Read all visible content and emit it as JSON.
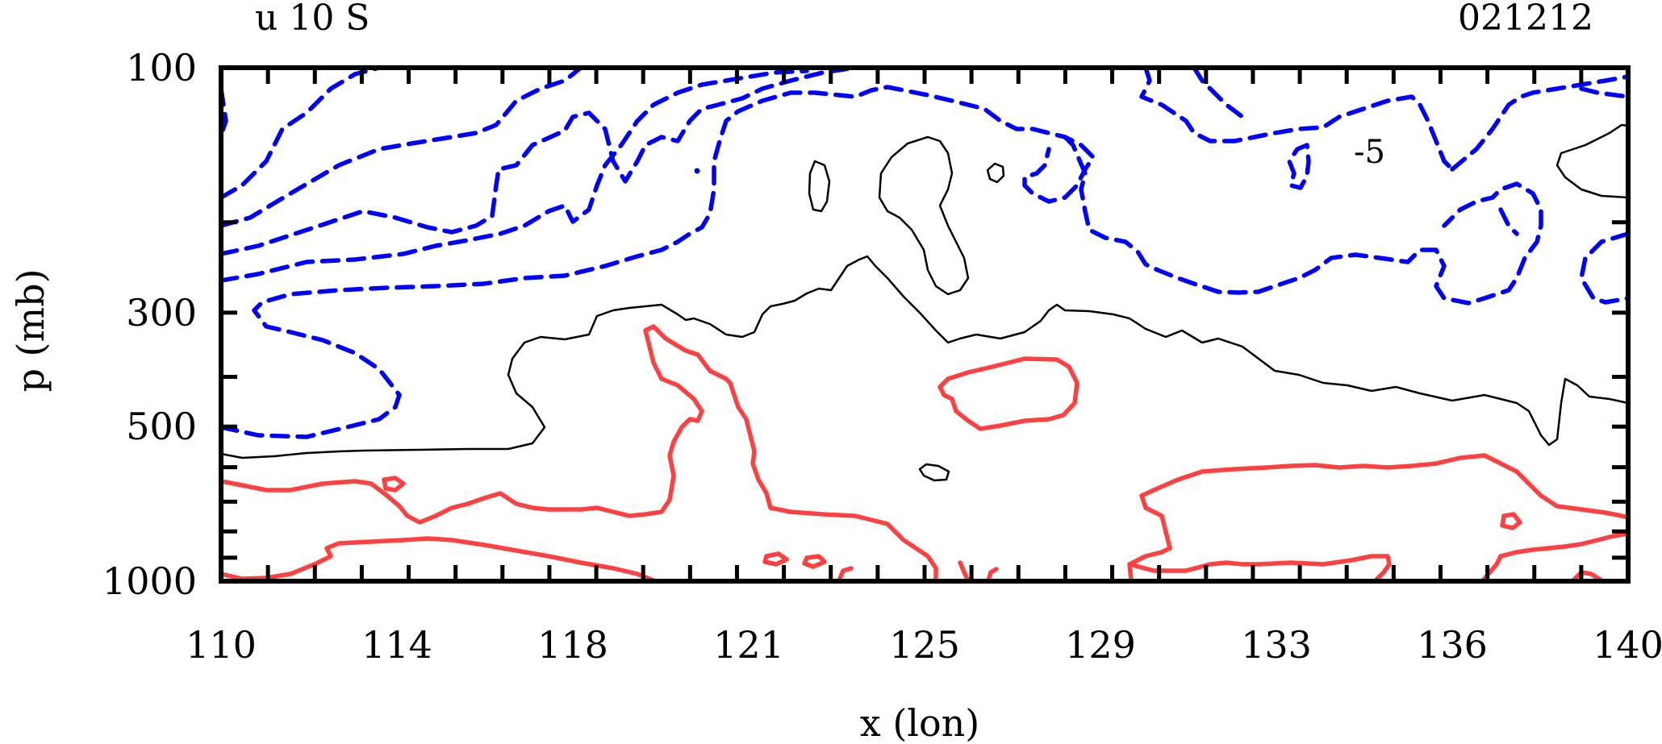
{
  "chart_data": {
    "type": "contour",
    "title_left": "u  10  S",
    "title_right": "021212",
    "xlabel": "x (lon)",
    "ylabel": "p (mb)",
    "x_range": [
      110,
      140
    ],
    "y_range": [
      100,
      1000
    ],
    "y_scale": "log",
    "x_tick_labels": [
      "110",
      "114",
      "118",
      "121",
      "125",
      "129",
      "133",
      "136",
      "140"
    ],
    "y_tick_labels": [
      "100",
      "300",
      "500",
      "1000"
    ],
    "y_tick_values": [
      100,
      300,
      500,
      1000
    ],
    "contour_label": "-5",
    "colors": {
      "negative": "#0000ff",
      "zero": "#000000",
      "positive": "#ff4040"
    }
  }
}
